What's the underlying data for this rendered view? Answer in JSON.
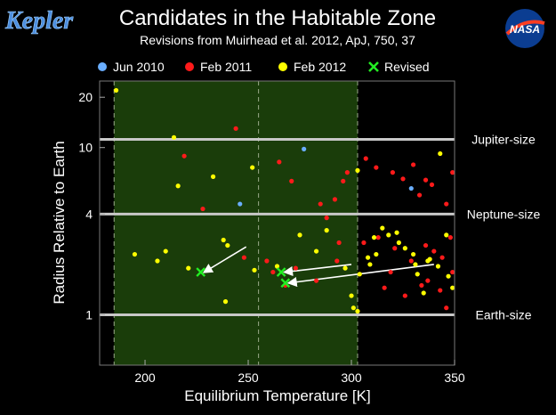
{
  "header": {
    "logo_left_text": "Kepler",
    "logo_right_text": "NASA"
  },
  "colors": {
    "background": "#000000",
    "habitable_zone": "#1a3d0a",
    "jun2010": "#6aaeff",
    "feb2011": "#ff1a1a",
    "feb2012": "#ffff00",
    "revised": "#22ee22",
    "reference_line": "#c8c8c8"
  },
  "chart_data": {
    "type": "scatter",
    "title": "Candidates in the Habitable Zone",
    "subtitle": "Revisions from Muirhead et al. 2012, ApJ, 750, 37",
    "xlabel": "Equilibrium Temperature [K]",
    "ylabel": "Radius Relative to Earth",
    "xlim": [
      178,
      350
    ],
    "ylim": [
      0.5,
      25
    ],
    "yscale": "log",
    "x_ticks": [
      200,
      250,
      300,
      350
    ],
    "y_ticks": [
      1,
      4,
      10,
      20
    ],
    "legend_position": "top",
    "legend": [
      {
        "label": "Jun 2010",
        "marker": "dot",
        "color_key": "jun2010"
      },
      {
        "label": "Feb 2011",
        "marker": "dot",
        "color_key": "feb2011"
      },
      {
        "label": "Feb 2012",
        "marker": "dot",
        "color_key": "feb2012"
      },
      {
        "label": "Revised",
        "marker": "x",
        "color_key": "revised"
      }
    ],
    "habitable_zone": {
      "x_start": 185,
      "x_end": 303,
      "x_mid": 255
    },
    "reference_lines": [
      {
        "y": 11.2,
        "label": "Jupiter-size"
      },
      {
        "y": 4.0,
        "label": "Neptune-size"
      },
      {
        "y": 1.0,
        "label": "Earth-size"
      }
    ],
    "series": [
      {
        "name": "Jun 2010",
        "color_key": "jun2010",
        "points": [
          [
            277,
            9.8
          ],
          [
            246,
            4.6
          ],
          [
            329,
            5.7
          ]
        ]
      },
      {
        "name": "Feb 2011",
        "color_key": "feb2011",
        "points": [
          [
            219,
            8.9
          ],
          [
            244,
            13
          ],
          [
            265,
            8.2
          ],
          [
            271,
            6.3
          ],
          [
            228,
            4.3
          ],
          [
            285,
            4.6
          ],
          [
            288,
            3.8
          ],
          [
            292,
            4.9
          ],
          [
            296,
            6.3
          ],
          [
            298,
            7.1
          ],
          [
            294,
            2.7
          ],
          [
            293,
            2.1
          ],
          [
            248,
            2.2
          ],
          [
            259,
            2.1
          ],
          [
            262,
            1.8
          ],
          [
            273,
            1.9
          ],
          [
            268,
            1.5
          ],
          [
            283,
            1.6
          ],
          [
            307,
            8.6
          ],
          [
            312,
            7.6
          ],
          [
            320,
            7.1
          ],
          [
            325,
            6.5
          ],
          [
            330,
            7.9
          ],
          [
            333,
            5.2
          ],
          [
            336,
            6.4
          ],
          [
            339,
            6.0
          ],
          [
            346,
            4.6
          ],
          [
            349,
            7.1
          ],
          [
            306,
            2.7
          ],
          [
            313,
            2.9
          ],
          [
            321,
            2.5
          ],
          [
            329,
            2.1
          ],
          [
            336,
            2.6
          ],
          [
            340,
            2.4
          ],
          [
            344,
            2.2
          ],
          [
            348,
            2.9
          ],
          [
            319,
            1.8
          ],
          [
            337,
            1.6
          ],
          [
            343,
            1.4
          ],
          [
            349,
            1.8
          ],
          [
            334,
            1.5
          ],
          [
            346,
            1.1
          ],
          [
            316,
            1.45
          ],
          [
            326,
            1.3
          ]
        ]
      },
      {
        "name": "Feb 2012",
        "color_key": "feb2012",
        "points": [
          [
            186,
            22
          ],
          [
            214,
            11.5
          ],
          [
            216,
            5.9
          ],
          [
            252,
            7.6
          ],
          [
            233,
            6.7
          ],
          [
            195,
            2.3
          ],
          [
            206,
            2.1
          ],
          [
            210,
            2.4
          ],
          [
            221,
            1.9
          ],
          [
            238,
            2.8
          ],
          [
            240,
            2.6
          ],
          [
            239,
            1.2
          ],
          [
            253,
            1.85
          ],
          [
            264,
            1.95
          ],
          [
            275,
            3.0
          ],
          [
            283,
            2.4
          ],
          [
            288,
            3.2
          ],
          [
            297,
            1.9
          ],
          [
            300,
            1.3
          ],
          [
            301,
            1.1
          ],
          [
            303,
            1.05
          ],
          [
            308,
            2.2
          ],
          [
            311,
            2.9
          ],
          [
            312,
            2.3
          ],
          [
            318,
            3.0
          ],
          [
            323,
            2.7
          ],
          [
            326,
            2.5
          ],
          [
            330,
            2.3
          ],
          [
            332,
            1.75
          ],
          [
            335,
            1.35
          ],
          [
            338,
            2.15
          ],
          [
            342,
            1.95
          ],
          [
            347,
            1.7
          ],
          [
            349,
            1.45
          ],
          [
            346,
            3.0
          ],
          [
            303,
            7.3
          ],
          [
            322,
            3.1
          ],
          [
            315,
            3.3
          ],
          [
            304,
            1.75
          ],
          [
            309,
            2.0
          ],
          [
            343,
            9.2
          ],
          [
            331,
            2.0
          ],
          [
            337,
            2.1
          ]
        ]
      }
    ],
    "revisions": [
      {
        "from": [
          249,
          2.55
        ],
        "to": [
          227,
          1.8
        ]
      },
      {
        "from": [
          300,
          2.0
        ],
        "to": [
          266,
          1.8
        ]
      },
      {
        "from": [
          340,
          2.0
        ],
        "to": [
          268,
          1.55
        ]
      }
    ]
  }
}
